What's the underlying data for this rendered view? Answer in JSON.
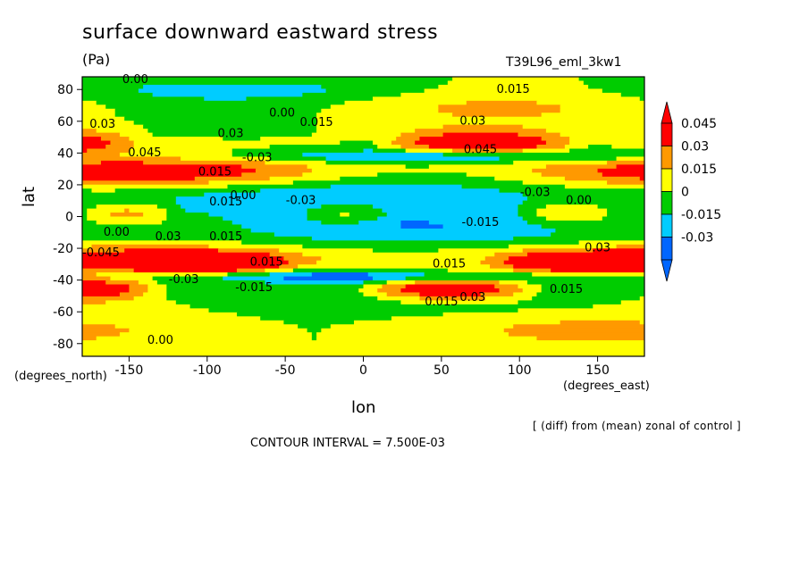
{
  "header": {
    "title": "surface downward eastward stress",
    "units": "(Pa)",
    "run_id": "T39L96_eml_3kw1"
  },
  "footer": {
    "note": "[ (diff) from (mean) zonal of control ]",
    "contour_interval": "CONTOUR INTERVAL = 7.500E-03"
  },
  "chart_data": {
    "type": "heatmap",
    "title": "surface downward eastward stress",
    "xlabel": "lon",
    "ylabel": "lat",
    "x_units": "(degrees_east)",
    "y_units": "(degrees_north)",
    "xlim": [
      -180,
      180
    ],
    "ylim": [
      -88,
      88
    ],
    "x_ticks": [
      "-150",
      "-100",
      "-50",
      "0",
      "50",
      "100",
      "150"
    ],
    "x_tick_values": [
      -150,
      -100,
      -50,
      0,
      50,
      100,
      150
    ],
    "y_ticks": [
      "80",
      "60",
      "40",
      "20",
      "0",
      "-20",
      "-40",
      "-60",
      "-80"
    ],
    "y_tick_values": [
      80,
      60,
      40,
      20,
      0,
      -20,
      -40,
      -60,
      -80
    ],
    "colorbar": {
      "labels": [
        "0.045",
        "0.03",
        "0.015",
        "0",
        "-0.015",
        "-0.03"
      ],
      "levels": [
        -0.045,
        -0.03,
        -0.015,
        0,
        0.015,
        0.03,
        0.045
      ],
      "colors": [
        "#0066ff",
        "#00ccff",
        "#00cc00",
        "#ffff00",
        "#ff9900",
        "#ff0000"
      ],
      "extend": "both"
    },
    "contour_labels": [
      {
        "text": "0.00",
        "lon": -146,
        "lat": 84
      },
      {
        "text": "0.015",
        "lon": 96,
        "lat": 78
      },
      {
        "text": "0.00",
        "lon": -52,
        "lat": 63
      },
      {
        "text": "0.015",
        "lon": -30,
        "lat": 57
      },
      {
        "text": "0.03",
        "lon": 70,
        "lat": 58
      },
      {
        "text": "0.03",
        "lon": -167,
        "lat": 56
      },
      {
        "text": "0.03",
        "lon": -85,
        "lat": 50
      },
      {
        "text": "0.045",
        "lon": -140,
        "lat": 38
      },
      {
        "text": "0.045",
        "lon": 75,
        "lat": 40
      },
      {
        "text": "-0.03",
        "lon": -68,
        "lat": 35
      },
      {
        "text": "0.015",
        "lon": -95,
        "lat": 26
      },
      {
        "text": "0.00",
        "lon": -77,
        "lat": 11
      },
      {
        "text": "0.015",
        "lon": -88,
        "lat": 7
      },
      {
        "text": "-0.03",
        "lon": -40,
        "lat": 8
      },
      {
        "text": "-0.03",
        "lon": 110,
        "lat": 13
      },
      {
        "text": "0.00",
        "lon": 138,
        "lat": 8
      },
      {
        "text": "-0.015",
        "lon": 75,
        "lat": -6
      },
      {
        "text": "0.00",
        "lon": -158,
        "lat": -12
      },
      {
        "text": "0.03",
        "lon": -125,
        "lat": -15
      },
      {
        "text": "0.015",
        "lon": -88,
        "lat": -15
      },
      {
        "text": "-0.045",
        "lon": -168,
        "lat": -25
      },
      {
        "text": "0.03",
        "lon": 150,
        "lat": -22
      },
      {
        "text": "0.015",
        "lon": -62,
        "lat": -31
      },
      {
        "text": "-0.03",
        "lon": -115,
        "lat": -42
      },
      {
        "text": "0.015",
        "lon": 55,
        "lat": -32
      },
      {
        "text": "-0.015",
        "lon": -70,
        "lat": -47
      },
      {
        "text": "0.03",
        "lon": 70,
        "lat": -53
      },
      {
        "text": "0.015",
        "lon": 50,
        "lat": -56
      },
      {
        "text": "0.015",
        "lon": 130,
        "lat": -48
      },
      {
        "text": "0.00",
        "lon": -130,
        "lat": -80
      }
    ]
  }
}
